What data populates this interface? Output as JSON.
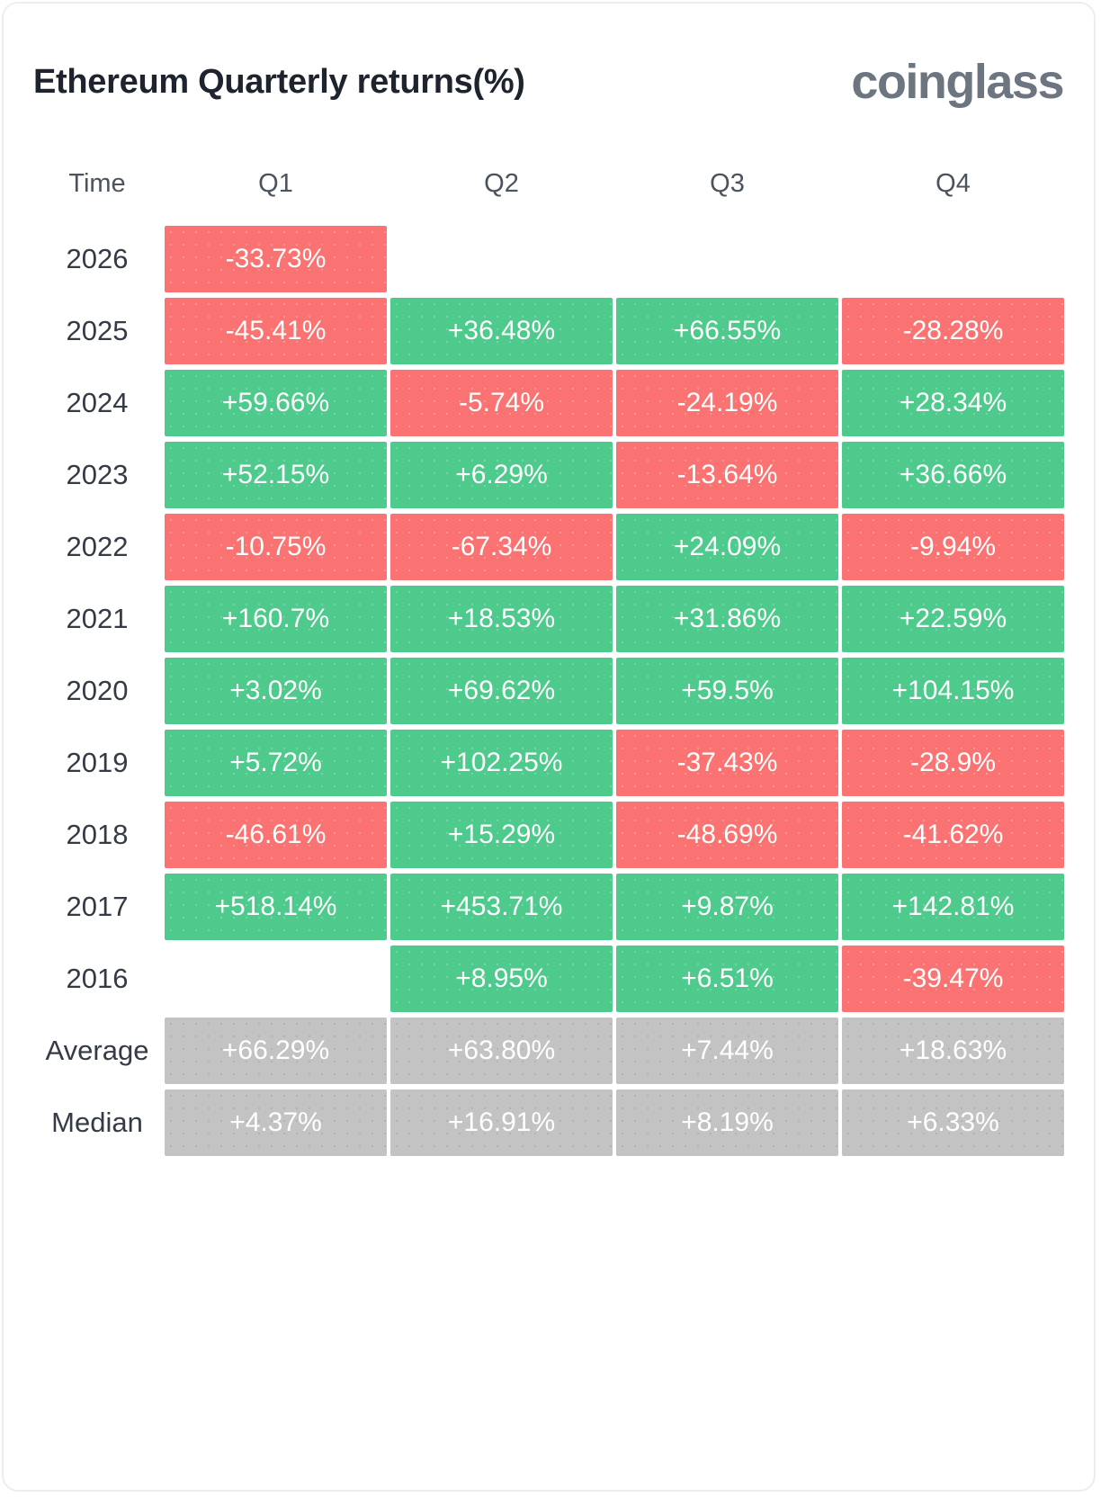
{
  "card": {
    "title": "Ethereum Quarterly returns(%)",
    "brand": "coinglass"
  },
  "colors": {
    "positive": "#4DCA8C",
    "negative": "#FA7372",
    "summary": "#C3C3C3",
    "cell_text": "#FFFFFF",
    "title_text": "#1D242E",
    "header_text": "#4B535E",
    "label_text": "#343B46",
    "brand_text": "#6D7680",
    "card_border": "#EBEDEE"
  },
  "chart_data": {
    "type": "heatmap",
    "title": "Ethereum Quarterly returns(%)",
    "columns": [
      "Time",
      "Q1",
      "Q2",
      "Q3",
      "Q4"
    ],
    "legend_position": "none",
    "color_rule": "green = positive return, red = negative return, gray = summary rows, blank = no data",
    "rows": [
      {
        "label": "2026",
        "kind": "year",
        "values": [
          "-33.73%",
          null,
          null,
          null
        ]
      },
      {
        "label": "2025",
        "kind": "year",
        "values": [
          "-45.41%",
          "+36.48%",
          "+66.55%",
          "-28.28%"
        ]
      },
      {
        "label": "2024",
        "kind": "year",
        "values": [
          "+59.66%",
          "-5.74%",
          "-24.19%",
          "+28.34%"
        ]
      },
      {
        "label": "2023",
        "kind": "year",
        "values": [
          "+52.15%",
          "+6.29%",
          "-13.64%",
          "+36.66%"
        ]
      },
      {
        "label": "2022",
        "kind": "year",
        "values": [
          "-10.75%",
          "-67.34%",
          "+24.09%",
          "-9.94%"
        ]
      },
      {
        "label": "2021",
        "kind": "year",
        "values": [
          "+160.7%",
          "+18.53%",
          "+31.86%",
          "+22.59%"
        ]
      },
      {
        "label": "2020",
        "kind": "year",
        "values": [
          "+3.02%",
          "+69.62%",
          "+59.5%",
          "+104.15%"
        ]
      },
      {
        "label": "2019",
        "kind": "year",
        "values": [
          "+5.72%",
          "+102.25%",
          "-37.43%",
          "-28.9%"
        ]
      },
      {
        "label": "2018",
        "kind": "year",
        "values": [
          "-46.61%",
          "+15.29%",
          "-48.69%",
          "-41.62%"
        ]
      },
      {
        "label": "2017",
        "kind": "year",
        "values": [
          "+518.14%",
          "+453.71%",
          "+9.87%",
          "+142.81%"
        ]
      },
      {
        "label": "2016",
        "kind": "year",
        "values": [
          null,
          "+8.95%",
          "+6.51%",
          "-39.47%"
        ]
      },
      {
        "label": "Average",
        "kind": "summary",
        "values": [
          "+66.29%",
          "+63.80%",
          "+7.44%",
          "+18.63%"
        ]
      },
      {
        "label": "Median",
        "kind": "summary",
        "values": [
          "+4.37%",
          "+16.91%",
          "+8.19%",
          "+6.33%"
        ]
      }
    ]
  }
}
